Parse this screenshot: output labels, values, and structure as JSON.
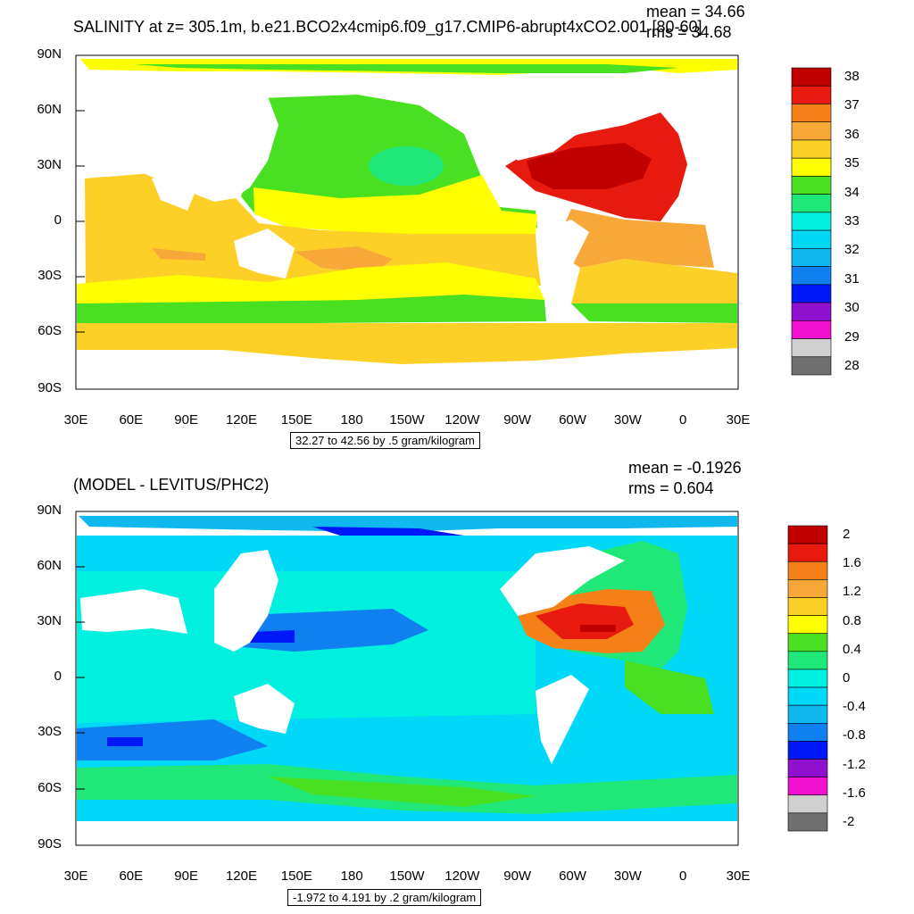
{
  "top": {
    "title": "SALINITY at z= 305.1m, b.e21.BCO2x4cmip6.f09_g17.CMIP6-abrupt4xCO2.001 [80-60]",
    "mean": "mean = 34.66",
    "rms": "rms = 34.68",
    "contour_info": "32.27 to 42.56 by .5 gram/kilogram",
    "colorbar_labels": [
      "38",
      "37",
      "36",
      "35",
      "34",
      "33",
      "32",
      "31",
      "30",
      "29",
      "28"
    ],
    "colorbar_colors": [
      "#c00000",
      "#e81a10",
      "#f58018",
      "#f8a838",
      "#fdd028",
      "#ffff00",
      "#48e020",
      "#20e878",
      "#00f0e0",
      "#00d8f8",
      "#10b8f0",
      "#1080f0",
      "#0018f8",
      "#9010d0",
      "#f010d0",
      "#d0d0d0",
      "#707070"
    ]
  },
  "bottom": {
    "title": "(MODEL - LEVITUS/PHC2)",
    "mean": "mean = -0.1926",
    "rms": "rms = 0.604",
    "contour_info": "-1.972 to 4.191 by .2 gram/kilogram",
    "colorbar_labels": [
      "2",
      "1.6",
      "1.2",
      "0.8",
      "0.4",
      "0",
      "-0.4",
      "-0.8",
      "-1.2",
      "-1.6",
      "-2"
    ],
    "colorbar_colors": [
      "#c00000",
      "#e81a10",
      "#f58018",
      "#f8a838",
      "#fdd028",
      "#ffff00",
      "#48e020",
      "#20e878",
      "#00f0e0",
      "#00d8f8",
      "#10b8f0",
      "#1080f0",
      "#0018f8",
      "#9010d0",
      "#f010d0",
      "#d0d0d0",
      "#707070"
    ]
  },
  "axes": {
    "lat_labels": [
      "90N",
      "60N",
      "30N",
      "0",
      "30S",
      "60S",
      "90S"
    ],
    "lon_labels": [
      "30E",
      "60E",
      "90E",
      "120E",
      "150E",
      "180",
      "150W",
      "120W",
      "90W",
      "60W",
      "30W",
      "0",
      "30E"
    ]
  }
}
